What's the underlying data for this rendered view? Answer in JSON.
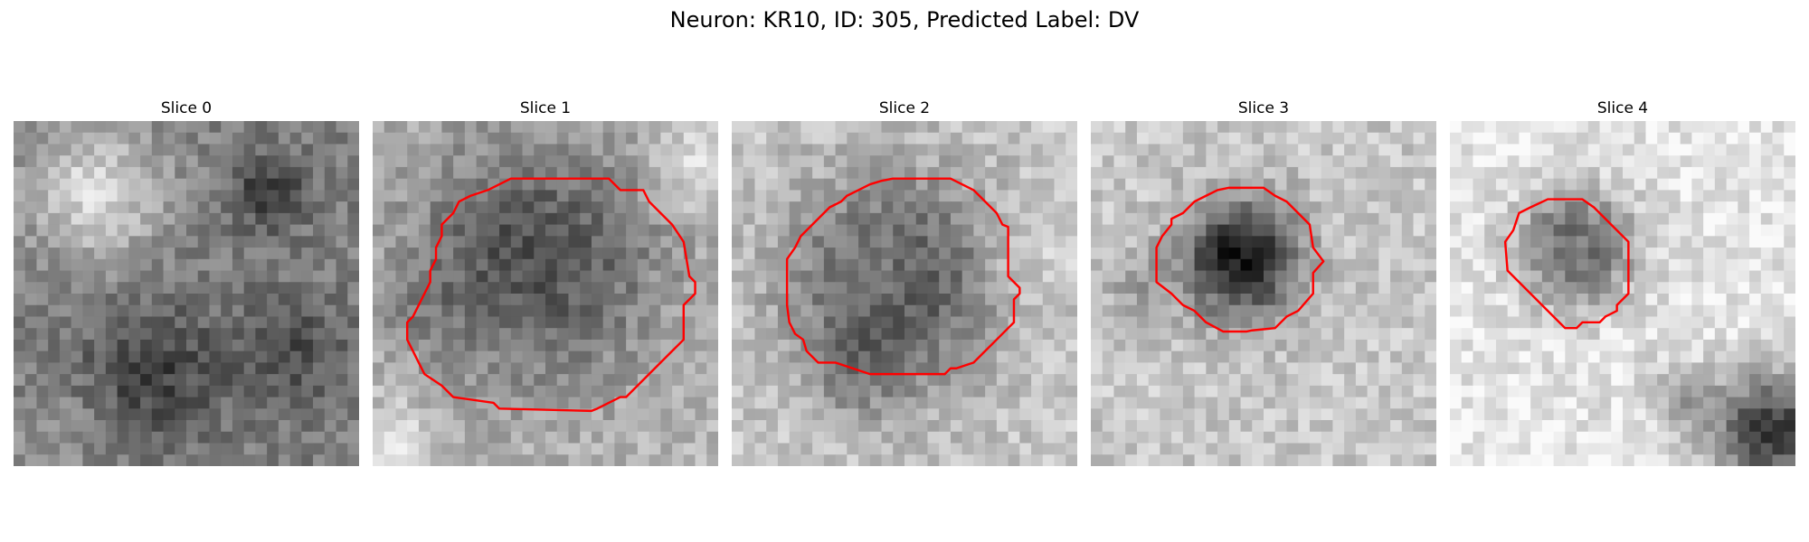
{
  "figure": {
    "title": "Neuron: KR10, ID: 305, Predicted Label: DV"
  },
  "panels": [
    {
      "title": "Slice 0",
      "has_contour": false
    },
    {
      "title": "Slice 1",
      "has_contour": true
    },
    {
      "title": "Slice 2",
      "has_contour": true
    },
    {
      "title": "Slice 3",
      "has_contour": true
    },
    {
      "title": "Slice 4",
      "has_contour": true
    }
  ],
  "colors": {
    "contour": "#ff0000",
    "background": "#ffffff"
  }
}
